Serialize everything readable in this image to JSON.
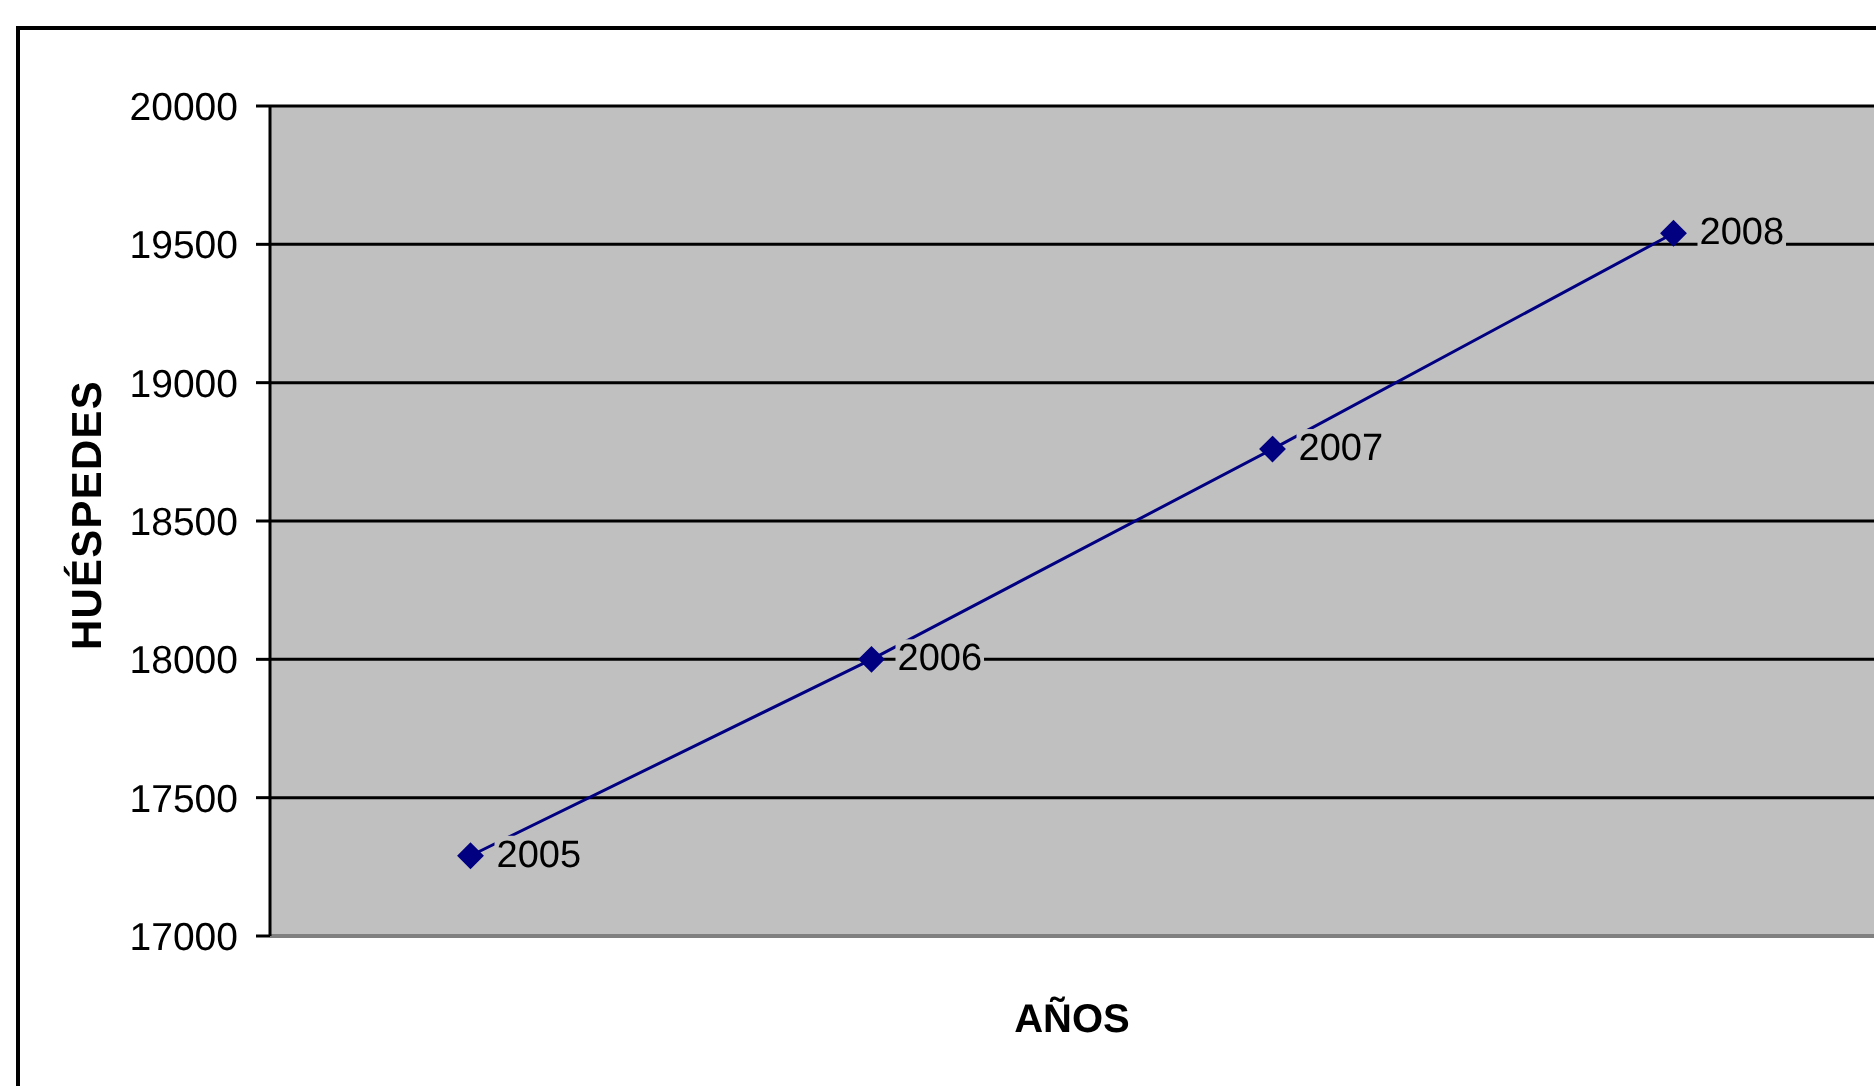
{
  "chart_data": {
    "type": "line",
    "xlabel": "AÑOS",
    "ylabel": "HUÉSPEDES",
    "categories": [
      "2005",
      "2006",
      "2007",
      "2008"
    ],
    "values": [
      17290,
      18000,
      18760,
      19540
    ],
    "color": "#000080",
    "ylim": [
      17000,
      20000
    ],
    "yticks": [
      17000,
      17500,
      18000,
      18500,
      19000,
      19500,
      20000
    ],
    "grid": "y",
    "marker": "diamond",
    "line_style": "solid"
  }
}
